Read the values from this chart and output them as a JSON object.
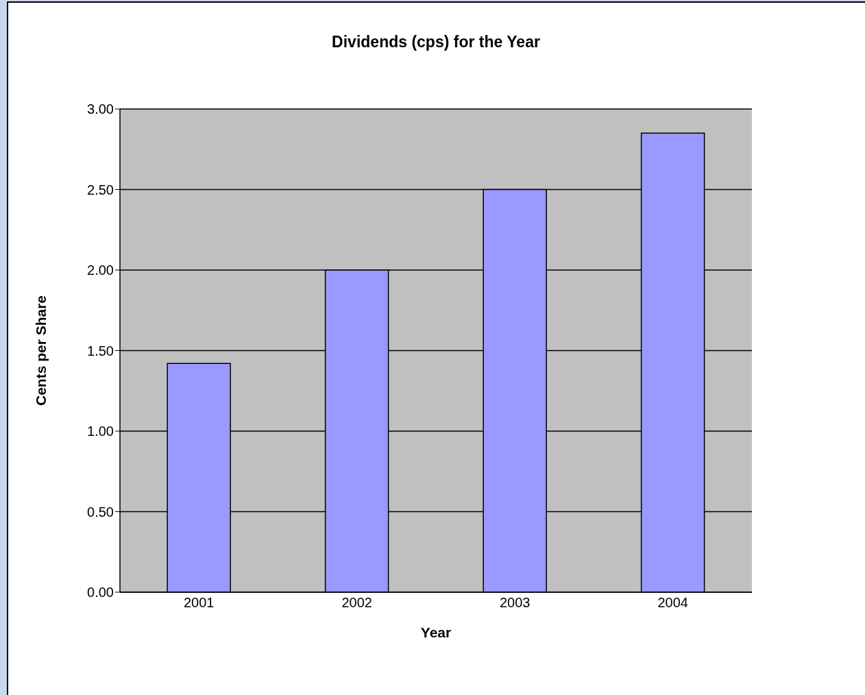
{
  "chart_data": {
    "type": "bar",
    "title": "Dividends (cps) for the Year",
    "xlabel": "Year",
    "ylabel": "Cents per Share",
    "categories": [
      "2001",
      "2002",
      "2003",
      "2004"
    ],
    "values": [
      1.42,
      2.0,
      2.5,
      2.85
    ],
    "color": "#9999ff",
    "ylim": [
      0,
      3
    ],
    "yticks": [
      {
        "value": 0,
        "label": "0.00"
      },
      {
        "value": 0.5,
        "label": "0.50"
      },
      {
        "value": 1,
        "label": "1.00"
      },
      {
        "value": 1.5,
        "label": "1.50"
      },
      {
        "value": 2,
        "label": "2.00"
      },
      {
        "value": 2.5,
        "label": "2.50"
      },
      {
        "value": 3,
        "label": "3.00"
      }
    ],
    "grid": "y"
  }
}
